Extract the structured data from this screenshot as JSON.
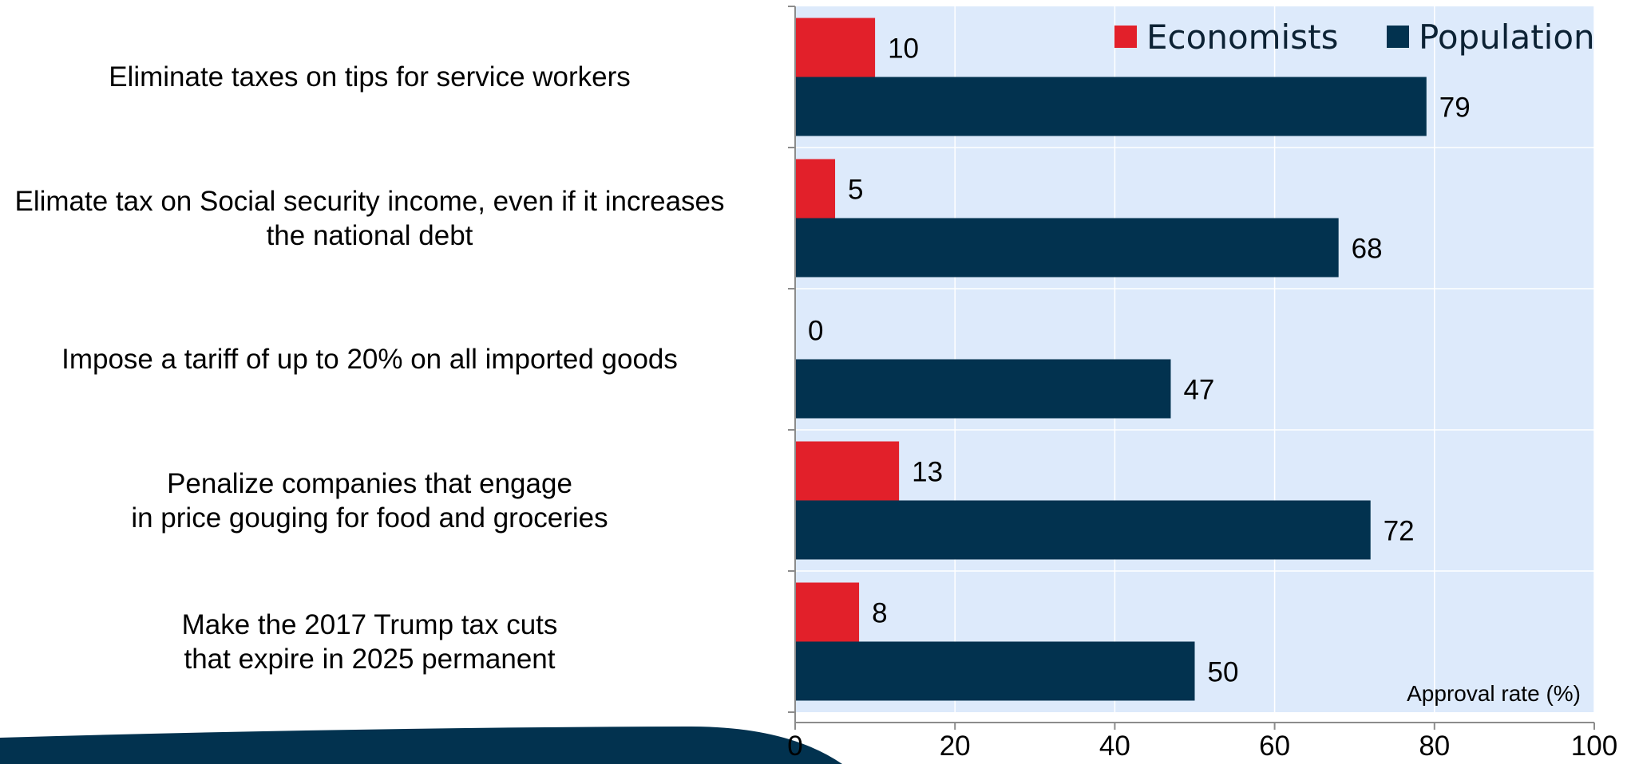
{
  "chart_data": {
    "type": "bar",
    "orientation": "horizontal",
    "categories": [
      [
        "Eliminate taxes on tips for service workers"
      ],
      [
        "Elimate tax on Social security income, even if it increases",
        "the national debt"
      ],
      [
        "Impose a tariff of up to 20% on all imported goods"
      ],
      [
        "Penalize companies that engage",
        "in price gouging for food and groceries"
      ],
      [
        "Make the 2017 Trump tax cuts",
        "that expire in 2025 permanent"
      ]
    ],
    "series": [
      {
        "name": "Economists",
        "color": "#e2202a",
        "values": [
          10,
          5,
          0,
          13,
          8
        ]
      },
      {
        "name": "Population",
        "color": "#02324f",
        "values": [
          79,
          68,
          47,
          72,
          50
        ]
      }
    ],
    "xlabel": "Approval rate (%)",
    "xlim": [
      0,
      100
    ],
    "xticks": [
      "0",
      "20",
      "40",
      "60",
      "80",
      "100"
    ],
    "grid": true,
    "legend_position": "top-right",
    "data_labels": true,
    "plot_background": "#ddeafb"
  },
  "decor": {
    "swoosh_color": "#02324f"
  }
}
